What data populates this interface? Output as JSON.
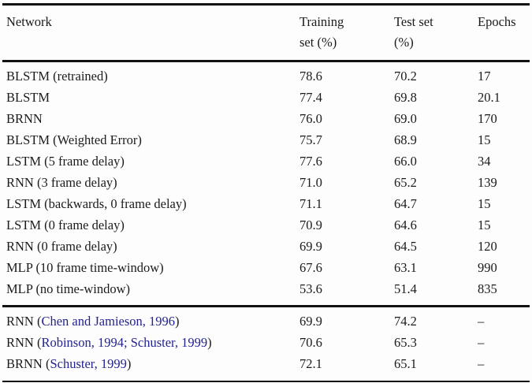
{
  "table": {
    "header": {
      "network": "Network",
      "training_lines": [
        "Training",
        "set (%)"
      ],
      "test_lines": [
        "Test set",
        "(%)"
      ],
      "epochs": "Epochs"
    },
    "rows": [
      {
        "network": "BLSTM (retrained)",
        "training": "78.6",
        "test": "70.2",
        "epochs": "17"
      },
      {
        "network": "BLSTM",
        "training": "77.4",
        "test": "69.8",
        "epochs": "20.1"
      },
      {
        "network": "BRNN",
        "training": "76.0",
        "test": "69.0",
        "epochs": "170"
      },
      {
        "network": "BLSTM (Weighted Error)",
        "training": "75.7",
        "test": "68.9",
        "epochs": "15"
      },
      {
        "network": "LSTM (5 frame delay)",
        "training": "77.6",
        "test": "66.0",
        "epochs": "34"
      },
      {
        "network": "RNN (3 frame delay)",
        "training": "71.0",
        "test": "65.2",
        "epochs": "139"
      },
      {
        "network": "LSTM (backwards, 0 frame delay)",
        "training": "71.1",
        "test": "64.7",
        "epochs": "15"
      },
      {
        "network": "LSTM (0 frame delay)",
        "training": "70.9",
        "test": "64.6",
        "epochs": "15"
      },
      {
        "network": "RNN (0 frame delay)",
        "training": "69.9",
        "test": "64.5",
        "epochs": "120"
      },
      {
        "network": "MLP (10 frame time-window)",
        "training": "67.6",
        "test": "63.1",
        "epochs": "990"
      },
      {
        "network": "MLP (no time-window)",
        "training": "53.6",
        "test": "51.4",
        "epochs": "835"
      }
    ],
    "cited_rows": [
      {
        "prefix": "RNN (",
        "citation": "Chen and Jamieson, 1996",
        "suffix": ")",
        "training": "69.9",
        "test": "74.2",
        "epochs": "–"
      },
      {
        "prefix": "RNN (",
        "citation": "Robinson, 1994; Schuster, 1999",
        "suffix": ")",
        "training": "70.6",
        "test": "65.3",
        "epochs": "–"
      },
      {
        "prefix": "BRNN (",
        "citation": "Schuster, 1999",
        "suffix": ")",
        "training": "72.1",
        "test": "65.1",
        "epochs": "–"
      }
    ],
    "colors": {
      "text": "#1b1b1b",
      "citation_link": "#23238e",
      "rule": "#121212",
      "background": "#fdfdfd"
    }
  }
}
